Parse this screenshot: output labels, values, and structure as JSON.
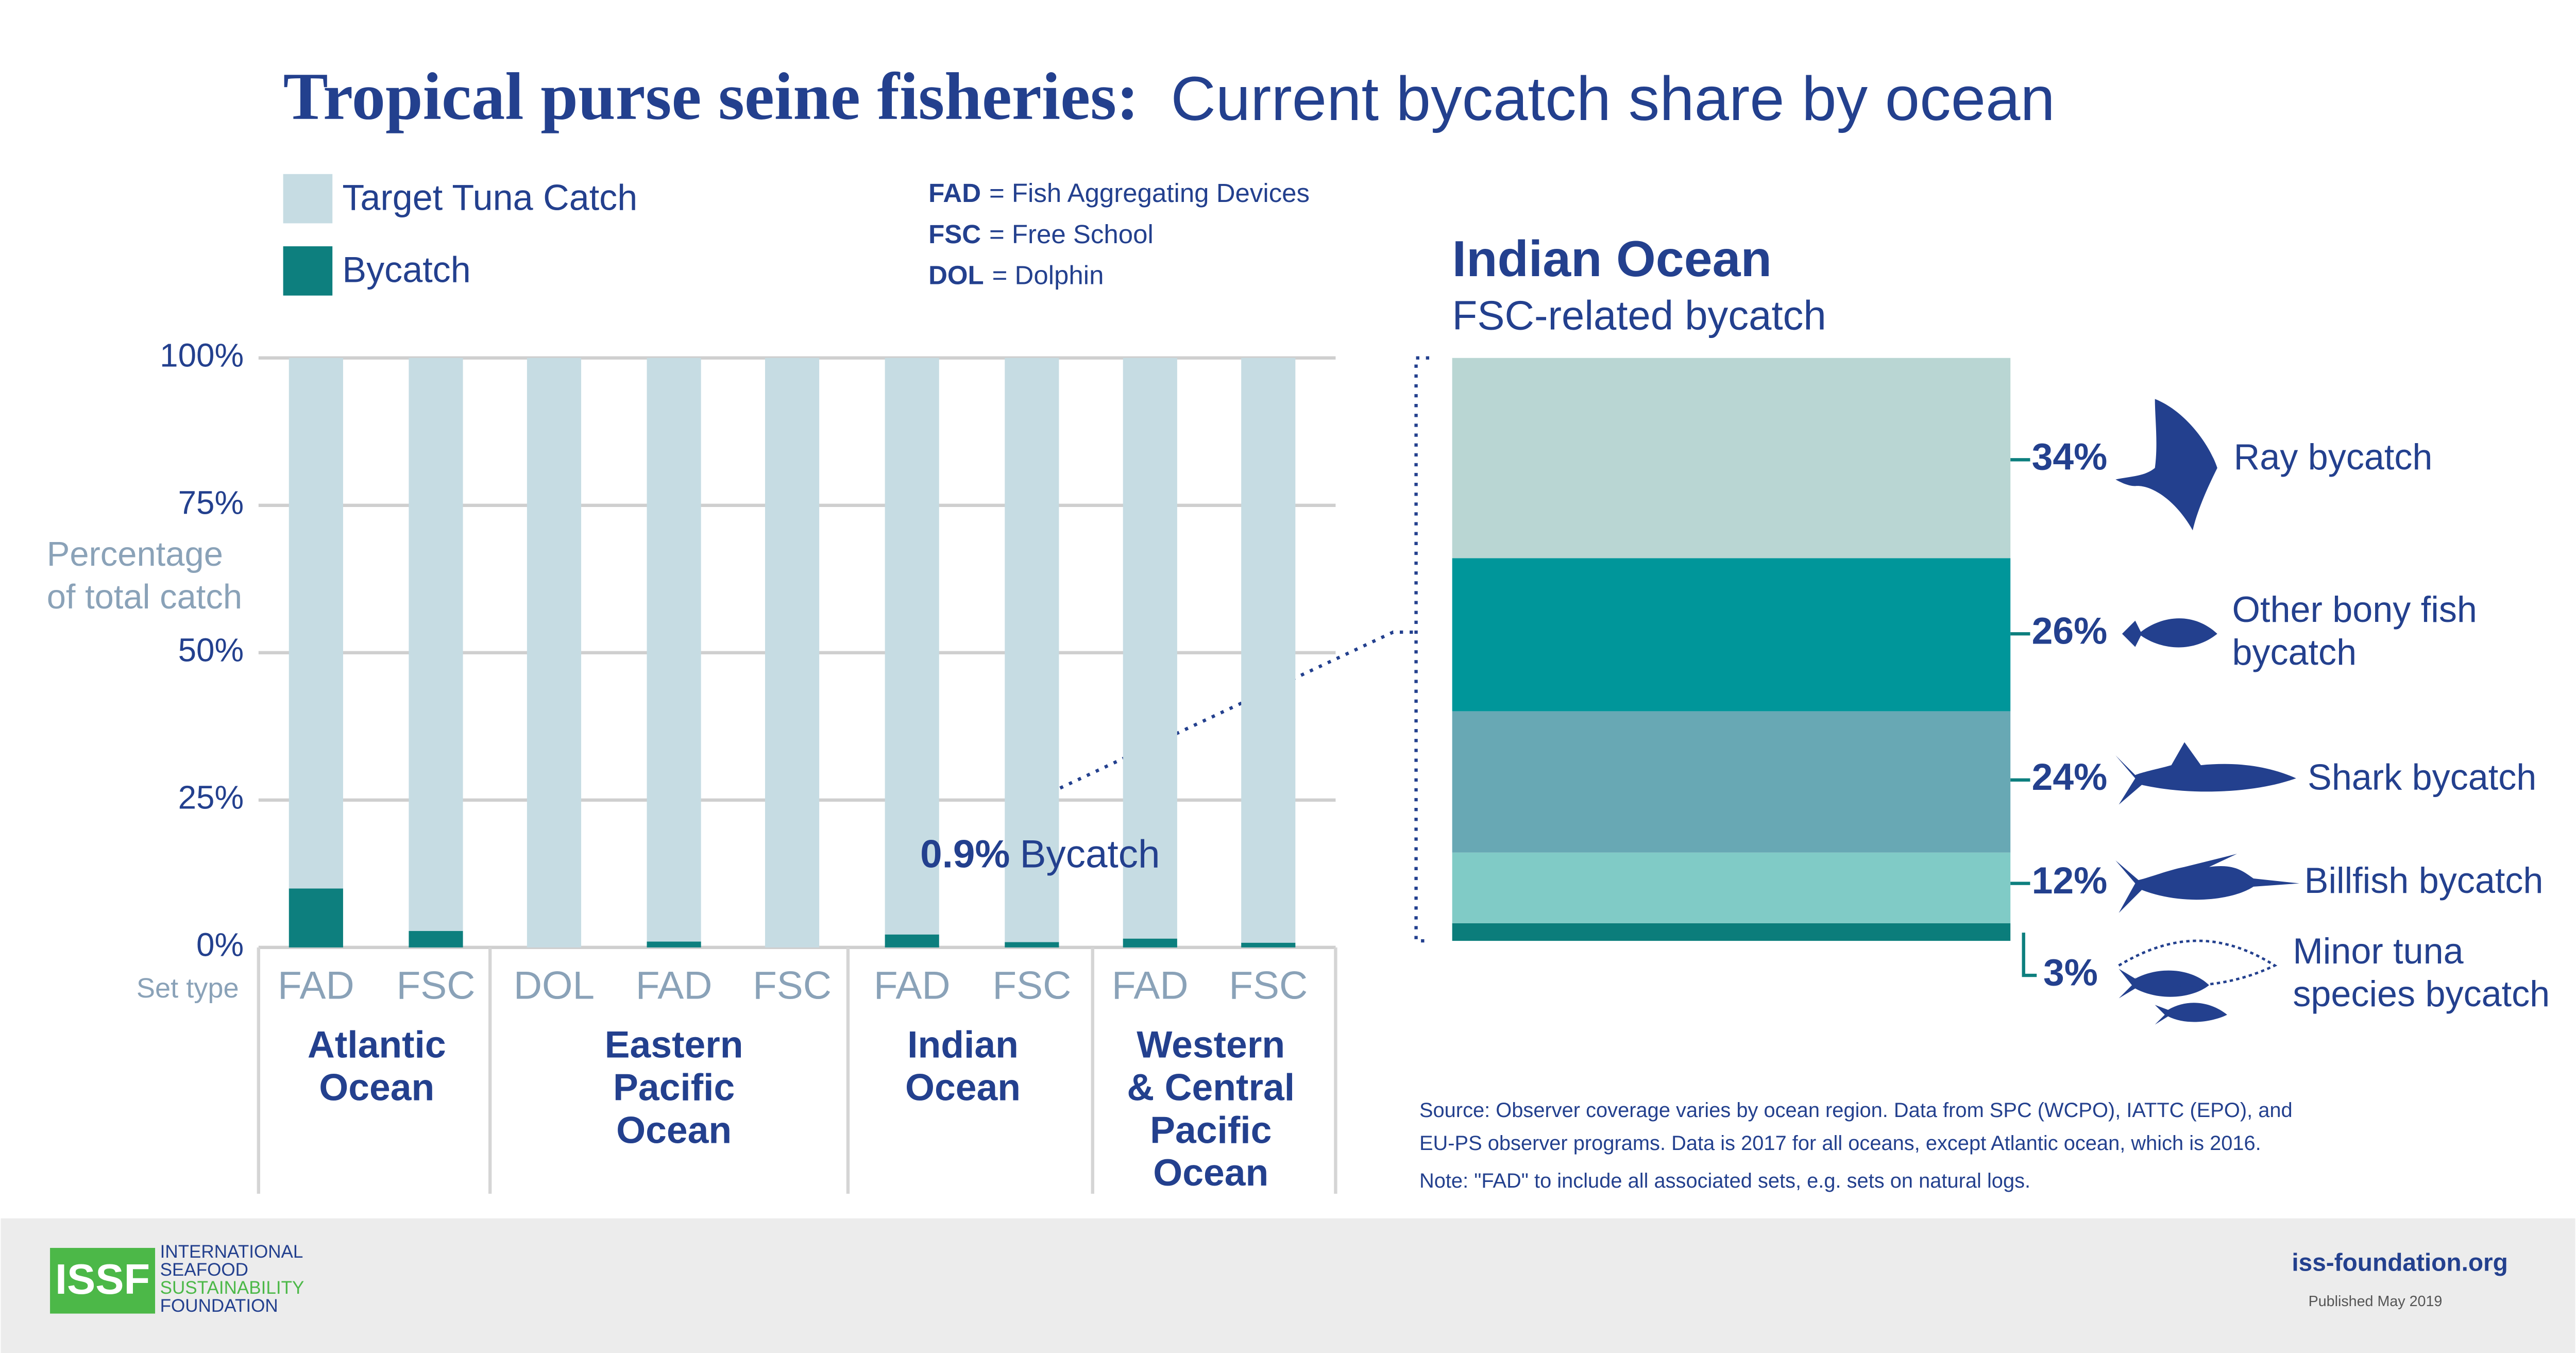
{
  "header": {
    "title_bold": "Tropical purse seine fisheries:",
    "title_light": "Current bycatch share by ocean"
  },
  "abbreviations": [
    {
      "abbr": "FAD",
      "text": "= Fish Aggregating Devices"
    },
    {
      "abbr": "FSC",
      "text": "= Free School"
    },
    {
      "abbr": "DOL",
      "text": "= Dolphin"
    }
  ],
  "chart_data": [
    {
      "type": "stacked-bar",
      "y_label": [
        "Percentage",
        "of total catch"
      ],
      "x_label": "Set type",
      "categories": [
        "FAD",
        "FSC",
        "DOL",
        "FAD",
        "FSC",
        "FAD",
        "FSC",
        "FAD",
        "FSC"
      ],
      "groups": [
        {
          "name": [
            "Atlantic",
            "Ocean"
          ]
        },
        {
          "name": [
            "Eastern",
            "Pacific",
            "Ocean"
          ]
        },
        {
          "name": [
            "Indian",
            "Ocean"
          ]
        },
        {
          "name": [
            "Western",
            "& Central",
            "Pacific",
            "Ocean"
          ]
        }
      ],
      "series": [
        {
          "name": "Bycatch",
          "color": "#0d7f7e",
          "values": [
            10,
            2.8,
            0,
            1,
            0,
            2.2,
            0.9,
            1.5,
            0.8
          ],
          "value_labels": [
            null,
            null,
            null,
            null,
            null,
            null,
            "0.9%",
            null,
            null
          ]
        },
        {
          "name": "Target Tuna Catch",
          "color": "#c6dce3",
          "values": [
            90,
            97.2,
            100,
            99,
            100,
            97.8,
            99.1,
            98.5,
            99.2
          ]
        }
      ],
      "annotation": "Bycatch",
      "ylim": [
        0,
        100
      ],
      "yticks": [
        {
          "value": 0,
          "label": "0%"
        },
        {
          "value": 25,
          "label": "25%"
        },
        {
          "value": 50,
          "label": "50%"
        },
        {
          "value": 75,
          "label": "75%"
        },
        {
          "value": 100,
          "label": "100%"
        }
      ],
      "grid": true
    },
    {
      "type": "stacked-share",
      "title": "Indian Ocean",
      "subtitle": "FSC-related bycatch",
      "series": [
        {
          "name": [
            "Ray bycatch"
          ],
          "color": "#b9d6d3",
          "value": 34,
          "value_label": "34%"
        },
        {
          "name": [
            "Other bony fish",
            "bycatch"
          ],
          "color": "#00969a",
          "value": 26,
          "value_label": "26%"
        },
        {
          "name": [
            "Shark bycatch"
          ],
          "color": "#68a8b4",
          "value": 24,
          "value_label": "24%"
        },
        {
          "name": [
            "Billfish bycatch"
          ],
          "color": "#80cbc6",
          "value": 12,
          "value_label": "12%"
        },
        {
          "name": [
            "Minor tuna",
            "species bycatch"
          ],
          "color": "#0b7d7b",
          "value": 3,
          "value_label": "3%"
        }
      ]
    }
  ],
  "footer": {
    "source": [
      "Source: Observer coverage varies by ocean region. Data from SPC (WCPO), IATTC (EPO), and",
      "EU-PS observer programs. Data is 2017 for all oceans, except Atlantic ocean, which is 2016."
    ],
    "note": "Note: \"FAD\" to include all associated sets, e.g. sets on natural logs.",
    "logo_mark": "ISSF",
    "logo_lines": [
      "INTERNATIONAL",
      "SEAFOOD",
      "SUSTAINABILITY",
      "FOUNDATION"
    ],
    "website": "iss-foundation.org",
    "published": "Published May 2019"
  }
}
